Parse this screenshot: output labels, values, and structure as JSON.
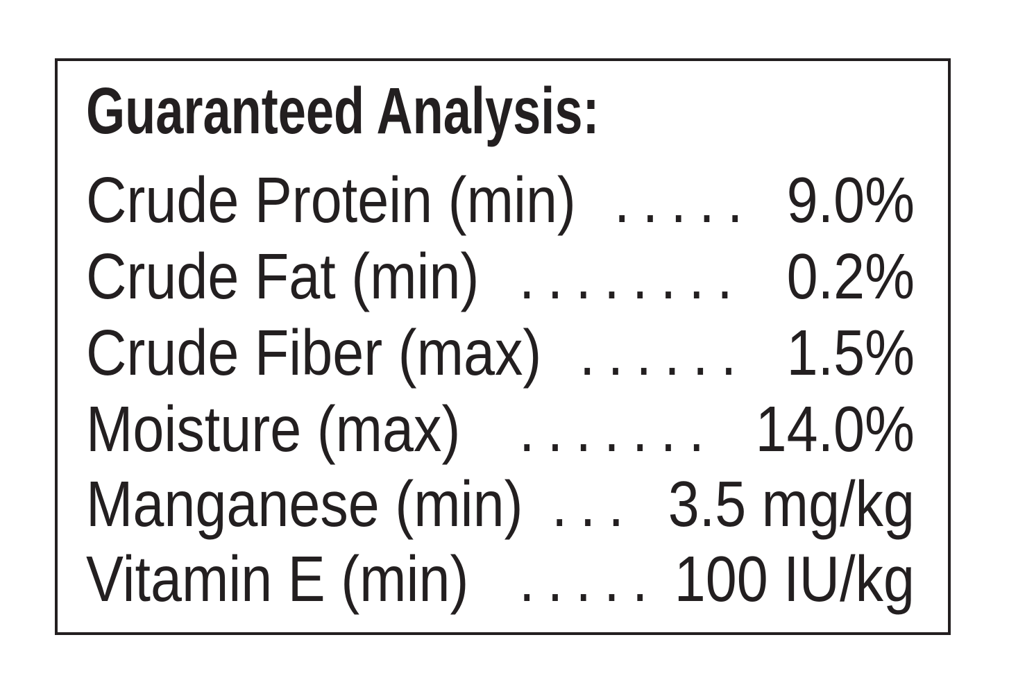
{
  "header": {
    "title": "Guaranteed Analysis:"
  },
  "rows": [
    {
      "label": "Crude Protein (min)",
      "dots": ".....",
      "value": "9.0%"
    },
    {
      "label": "Crude Fat (min)",
      "dots": "........",
      "value": "0.2%"
    },
    {
      "label": "Crude Fiber (max)",
      "dots": "......",
      "value": "1.5%"
    },
    {
      "label": "Moisture (max)",
      "dots": ".......",
      "value": "14.0%"
    },
    {
      "label": "Manganese (min)",
      "dots": "...",
      "value": "3.5 mg/kg"
    },
    {
      "label": "Vitamin E (min)",
      "dots": ".....",
      "value": "100 IU/kg"
    }
  ]
}
